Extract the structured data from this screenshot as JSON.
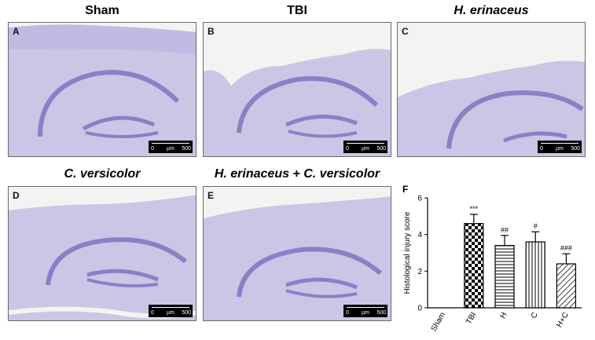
{
  "panels": [
    {
      "id": "A",
      "title": "Sham",
      "italic": false
    },
    {
      "id": "B",
      "title": "TBI",
      "italic": false
    },
    {
      "id": "C",
      "title": "H. erinaceus",
      "italic": true
    },
    {
      "id": "D",
      "title": "C. versicolor",
      "italic": true
    },
    {
      "id": "E",
      "title": "H. erinaceus + C. versicolor",
      "italic": true
    }
  ],
  "scale_bar": {
    "start": "0",
    "unit": "µm",
    "end": "500"
  },
  "panel_f_label": "F",
  "colors": {
    "bar_stroke": "#000000",
    "tissue": "#c9c3e4",
    "tissue_dark": "#8b80c6",
    "background": "#f4f3f1"
  },
  "chart_data": {
    "type": "bar",
    "categories": [
      "Sham",
      "TBI",
      "H",
      "C",
      "H+C"
    ],
    "values": [
      0,
      4.6,
      3.4,
      3.6,
      2.4
    ],
    "errors": [
      0,
      0.5,
      0.55,
      0.55,
      0.55
    ],
    "significance": [
      "",
      "***",
      "##",
      "#",
      "###"
    ],
    "patterns": [
      "none",
      "checker",
      "horizontal",
      "vertical",
      "diagonal"
    ],
    "ylabel": "Histological injury score",
    "ylim": [
      0,
      6
    ],
    "yticks": [
      0,
      2,
      4,
      6
    ],
    "grid": false
  }
}
